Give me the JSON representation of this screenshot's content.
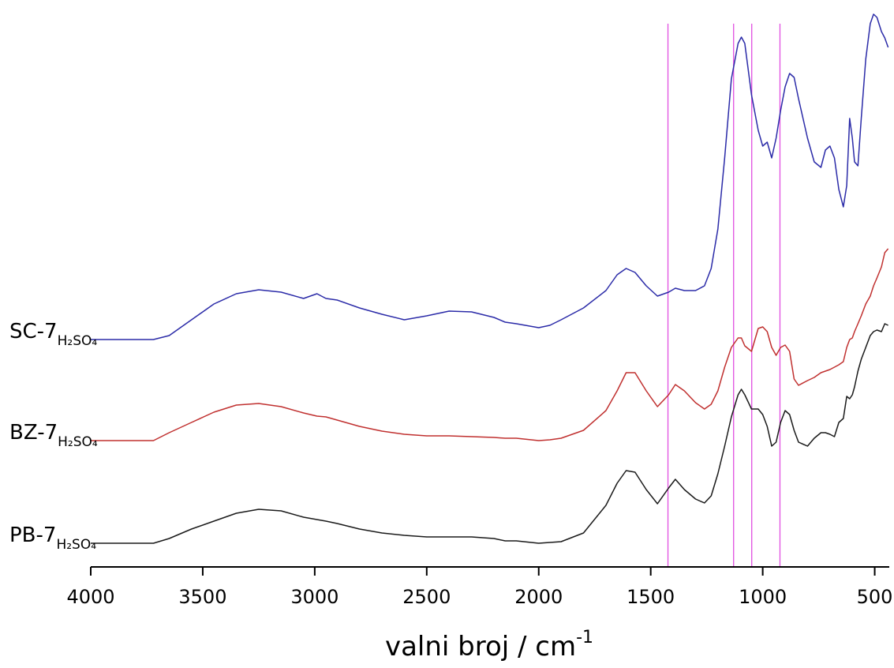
{
  "chart_data": {
    "type": "line",
    "xlabel": "valni broj / cm",
    "xlabel_superscript": "-1",
    "xlim": [
      4000,
      435
    ],
    "xticks": [
      4000,
      3500,
      3000,
      2500,
      2000,
      1500,
      1000,
      500
    ],
    "ylim": [
      0,
      7.1
    ],
    "vlines": [
      1423,
      1130,
      1049,
      923
    ],
    "vline_color": "#e04fe0",
    "x": [
      4000,
      3720,
      3650,
      3550,
      3450,
      3350,
      3250,
      3150,
      3050,
      2990,
      2950,
      2900,
      2800,
      2700,
      2600,
      2500,
      2400,
      2300,
      2200,
      2150,
      2100,
      2000,
      1950,
      1900,
      1800,
      1700,
      1650,
      1610,
      1570,
      1520,
      1470,
      1420,
      1390,
      1350,
      1300,
      1260,
      1230,
      1200,
      1170,
      1140,
      1110,
      1095,
      1080,
      1050,
      1020,
      1000,
      980,
      960,
      940,
      920,
      900,
      880,
      860,
      840,
      800,
      770,
      740,
      720,
      700,
      680,
      660,
      640,
      625,
      612,
      600,
      590,
      575,
      560,
      540,
      520,
      505,
      490,
      470,
      455,
      440
    ],
    "series": [
      {
        "name": "SC-7",
        "name_subscript": "H₂SO₄",
        "color": "#2b2ba8",
        "values": [
          2.88,
          2.88,
          2.93,
          3.13,
          3.33,
          3.46,
          3.51,
          3.48,
          3.4,
          3.46,
          3.4,
          3.38,
          3.28,
          3.2,
          3.13,
          3.18,
          3.24,
          3.23,
          3.16,
          3.1,
          3.08,
          3.03,
          3.06,
          3.13,
          3.28,
          3.5,
          3.7,
          3.78,
          3.73,
          3.56,
          3.43,
          3.48,
          3.53,
          3.5,
          3.5,
          3.56,
          3.78,
          4.28,
          5.18,
          6.18,
          6.63,
          6.71,
          6.63,
          5.98,
          5.53,
          5.33,
          5.38,
          5.18,
          5.43,
          5.78,
          6.08,
          6.25,
          6.2,
          5.93,
          5.43,
          5.13,
          5.06,
          5.28,
          5.33,
          5.18,
          4.78,
          4.56,
          4.83,
          5.68,
          5.43,
          5.13,
          5.08,
          5.68,
          6.43,
          6.88,
          7.0,
          6.96,
          6.78,
          6.7,
          6.58
        ]
      },
      {
        "name": "BZ-7",
        "name_subscript": "H₂SO₄",
        "color": "#c0302f",
        "values": [
          1.6,
          1.6,
          1.7,
          1.83,
          1.96,
          2.05,
          2.07,
          2.03,
          1.95,
          1.91,
          1.9,
          1.86,
          1.78,
          1.72,
          1.68,
          1.66,
          1.66,
          1.65,
          1.64,
          1.63,
          1.63,
          1.6,
          1.61,
          1.63,
          1.73,
          1.98,
          2.23,
          2.46,
          2.46,
          2.23,
          2.03,
          2.18,
          2.31,
          2.23,
          2.08,
          2.0,
          2.06,
          2.23,
          2.53,
          2.78,
          2.9,
          2.9,
          2.8,
          2.73,
          3.02,
          3.04,
          2.98,
          2.78,
          2.68,
          2.78,
          2.81,
          2.73,
          2.38,
          2.3,
          2.36,
          2.4,
          2.46,
          2.48,
          2.5,
          2.53,
          2.56,
          2.6,
          2.78,
          2.88,
          2.9,
          2.98,
          3.08,
          3.18,
          3.33,
          3.43,
          3.56,
          3.66,
          3.8,
          3.98,
          4.03
        ]
      },
      {
        "name": "PB-7",
        "name_subscript": "H₂SO₄",
        "color": "#1a1a1a",
        "values": [
          0.3,
          0.3,
          0.36,
          0.48,
          0.58,
          0.68,
          0.73,
          0.71,
          0.63,
          0.6,
          0.58,
          0.55,
          0.48,
          0.43,
          0.4,
          0.38,
          0.38,
          0.38,
          0.36,
          0.33,
          0.33,
          0.3,
          0.31,
          0.32,
          0.43,
          0.78,
          1.06,
          1.22,
          1.2,
          0.98,
          0.8,
          1.0,
          1.11,
          0.98,
          0.86,
          0.81,
          0.9,
          1.18,
          1.53,
          1.9,
          2.18,
          2.25,
          2.18,
          2.0,
          2.0,
          1.93,
          1.78,
          1.53,
          1.58,
          1.83,
          1.98,
          1.93,
          1.73,
          1.58,
          1.53,
          1.63,
          1.7,
          1.7,
          1.68,
          1.65,
          1.83,
          1.88,
          2.16,
          2.13,
          2.18,
          2.28,
          2.48,
          2.63,
          2.78,
          2.93,
          2.98,
          3.0,
          2.98,
          3.08,
          3.06
        ]
      }
    ]
  }
}
